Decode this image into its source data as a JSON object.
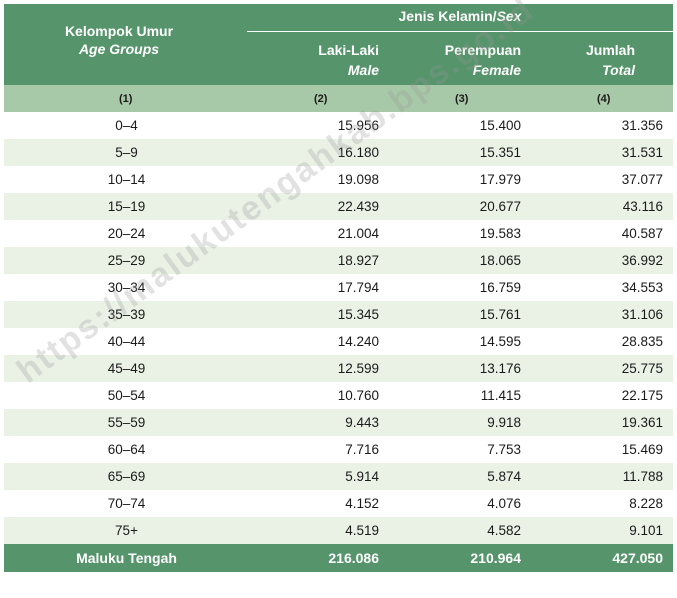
{
  "header": {
    "group_label": "Kelompok Umur",
    "group_label_en": "Age Groups",
    "sex_label": "Jenis Kelamin/",
    "sex_label_en": "Sex",
    "male_label": "Laki-Laki",
    "male_label_en": "Male",
    "female_label": "Perempuan",
    "female_label_en": "Female",
    "total_label": "Jumlah",
    "total_label_en": "Total"
  },
  "column_numbers": [
    "(1)",
    "(2)",
    "(3)",
    "(4)"
  ],
  "rows": [
    {
      "age": "0–4",
      "male": "15.956",
      "female": "15.400",
      "total": "31.356"
    },
    {
      "age": "5–9",
      "male": "16.180",
      "female": "15.351",
      "total": "31.531"
    },
    {
      "age": "10–14",
      "male": "19.098",
      "female": "17.979",
      "total": "37.077"
    },
    {
      "age": "15–19",
      "male": "22.439",
      "female": "20.677",
      "total": "43.116"
    },
    {
      "age": "20–24",
      "male": "21.004",
      "female": "19.583",
      "total": "40.587"
    },
    {
      "age": "25–29",
      "male": "18.927",
      "female": "18.065",
      "total": "36.992"
    },
    {
      "age": "30–34",
      "male": "17.794",
      "female": "16.759",
      "total": "34.553"
    },
    {
      "age": "35–39",
      "male": "15.345",
      "female": "15.761",
      "total": "31.106"
    },
    {
      "age": "40–44",
      "male": "14.240",
      "female": "14.595",
      "total": "28.835"
    },
    {
      "age": "45–49",
      "male": "12.599",
      "female": "13.176",
      "total": "25.775"
    },
    {
      "age": "50–54",
      "male": "10.760",
      "female": "11.415",
      "total": "22.175"
    },
    {
      "age": "55–59",
      "male": "9.443",
      "female": "9.918",
      "total": "19.361"
    },
    {
      "age": "60–64",
      "male": "7.716",
      "female": "7.753",
      "total": "15.469"
    },
    {
      "age": "65–69",
      "male": "5.914",
      "female": "5.874",
      "total": "11.788"
    },
    {
      "age": "70–74",
      "male": "4.152",
      "female": "4.076",
      "total": "8.228"
    },
    {
      "age": "75+",
      "male": "4.519",
      "female": "4.582",
      "total": "9.101"
    }
  ],
  "total_row": {
    "label": "Maluku Tengah",
    "male": "216.086",
    "female": "210.964",
    "total": "427.050"
  },
  "watermark": "https://malukutengahkab.bps.go.id",
  "colors": {
    "header": "#56946b",
    "subheader": "#a8c9a8",
    "stripe": "#eaf2e6"
  }
}
